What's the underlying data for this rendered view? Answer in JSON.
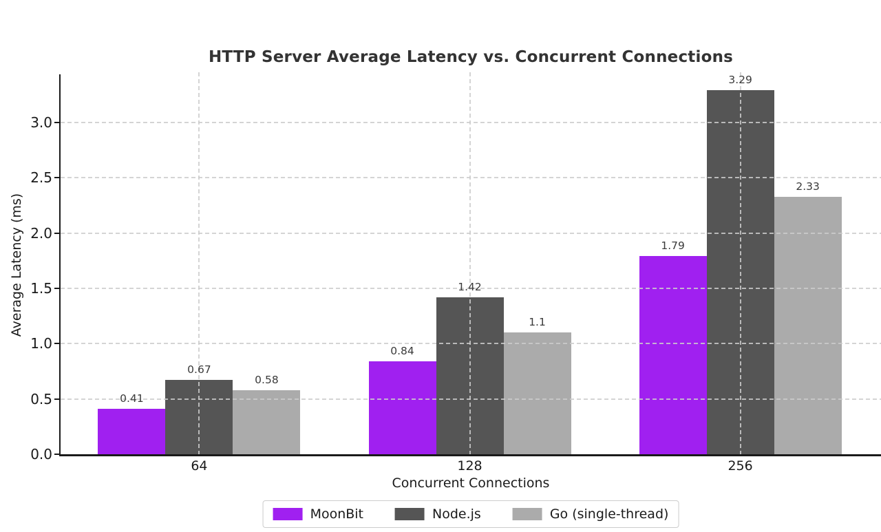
{
  "figure": {
    "background": "#ffffff"
  },
  "chart_data": {
    "type": "bar",
    "title": "HTTP Server Average Latency vs. Concurrent Connections",
    "xlabel": "Concurrent Connections",
    "ylabel": "Average Latency (ms)",
    "categories": [
      "64",
      "128",
      "256"
    ],
    "series": [
      {
        "name": "MoonBit",
        "color": "#a020f0",
        "values": [
          0.41,
          0.84,
          1.79
        ],
        "labels": [
          "0.41",
          "0.84",
          "1.79"
        ]
      },
      {
        "name": "Node.js",
        "color": "#555555",
        "values": [
          0.67,
          1.42,
          3.29
        ],
        "labels": [
          "0.67",
          "1.42",
          "3.29"
        ]
      },
      {
        "name": "Go (single-thread)",
        "color": "#ababab",
        "values": [
          0.58,
          1.1,
          2.33
        ],
        "labels": [
          "0.58",
          "1.1",
          "2.33"
        ]
      }
    ],
    "yticks": [
      0.0,
      0.5,
      1.0,
      1.5,
      2.0,
      2.5,
      3.0
    ],
    "ytick_labels": [
      "0.0",
      "0.5",
      "1.0",
      "1.5",
      "2.0",
      "2.5",
      "3.0"
    ],
    "ylim": [
      0,
      3.45
    ],
    "grid": "dashed",
    "grid_on": true,
    "legend_position": "bottom-center",
    "colors": {
      "grid": "#cccccc",
      "axis": "#1a1a1a",
      "tick_text": "#1a1a1a",
      "title_text": "#333333",
      "value_label_text": "#3a3a3a"
    }
  }
}
